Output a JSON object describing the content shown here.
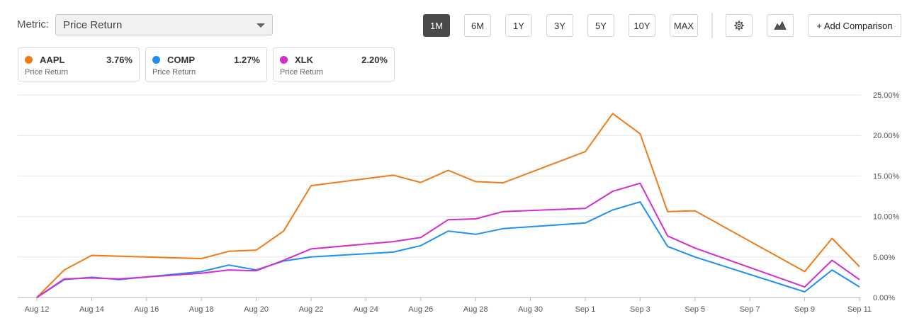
{
  "controls": {
    "metric_label": "Metric:",
    "metric_value": "Price Return",
    "periods": [
      "1M",
      "6M",
      "1Y",
      "3Y",
      "5Y",
      "10Y",
      "MAX"
    ],
    "active_period": "1M",
    "add_comparison": "+ Add Comparison"
  },
  "legend": [
    {
      "ticker": "AAPL",
      "value": "3.76%",
      "sub": "Price Return",
      "color": "#f07b16"
    },
    {
      "ticker": "COMP",
      "value": "1.27%",
      "sub": "Price Return",
      "color": "#1e90f0"
    },
    {
      "ticker": "XLK",
      "value": "2.20%",
      "sub": "Price Return",
      "color": "#d42ccf"
    }
  ],
  "chart_data": {
    "type": "line",
    "x_dates": [
      "Aug 12",
      "Aug 13",
      "Aug 14",
      "Aug 15",
      "Aug 16",
      "Aug 19",
      "Aug 20",
      "Aug 21",
      "Aug 22",
      "Aug 23",
      "Aug 26",
      "Aug 27",
      "Aug 28",
      "Aug 29",
      "Aug 30",
      "Sep 3",
      "Sep 4",
      "Sep 5",
      "Sep 6",
      "Sep 9",
      "Sep 10",
      "Sep 11"
    ],
    "x_tick_labels": [
      "Aug 12",
      "Aug 14",
      "Aug 16",
      "Aug 18",
      "Aug 20",
      "Aug 22",
      "Aug 24",
      "Aug 26",
      "Aug 28",
      "Aug 30",
      "Sep 1",
      "Sep 3",
      "Sep 5",
      "Sep 7",
      "Sep 9",
      "Sep 11"
    ],
    "y_tick_labels": [
      "0.00%",
      "5.00%",
      "10.00%",
      "15.00%",
      "20.00%",
      "25.00%"
    ],
    "ylim": [
      0,
      25
    ],
    "grid": true,
    "series": [
      {
        "name": "AAPL",
        "color": "#f07b16",
        "x": [
          "Aug 12",
          "Aug 13",
          "Aug 14",
          "Aug 18",
          "Aug 19",
          "Aug 20",
          "Aug 21",
          "Aug 22",
          "Aug 25",
          "Aug 26",
          "Aug 27",
          "Aug 28",
          "Aug 29",
          "Sep 1",
          "Sep 2",
          "Sep 3",
          "Sep 4",
          "Sep 5",
          "Sep 9",
          "Sep 10",
          "Sep 11"
        ],
        "values": [
          0.0,
          3.4,
          5.2,
          4.8,
          5.7,
          5.85,
          8.2,
          13.8,
          15.1,
          14.2,
          15.7,
          14.3,
          14.15,
          18.0,
          22.7,
          20.2,
          10.6,
          10.7,
          3.2,
          7.3,
          3.8
        ]
      },
      {
        "name": "COMP",
        "color": "#1e90f0",
        "x": [
          "Aug 12",
          "Aug 13",
          "Aug 14",
          "Aug 15",
          "Aug 18",
          "Aug 19",
          "Aug 20",
          "Aug 21",
          "Aug 22",
          "Aug 25",
          "Aug 26",
          "Aug 27",
          "Aug 28",
          "Aug 29",
          "Sep 1",
          "Sep 2",
          "Sep 3",
          "Sep 4",
          "Sep 5",
          "Sep 9",
          "Sep 10",
          "Sep 11"
        ],
        "values": [
          0.0,
          2.2,
          2.5,
          2.2,
          3.2,
          4.0,
          3.4,
          4.5,
          5.0,
          5.6,
          6.4,
          8.2,
          7.8,
          8.5,
          9.2,
          10.8,
          11.8,
          6.3,
          5.0,
          0.7,
          3.4,
          1.3
        ]
      },
      {
        "name": "XLK",
        "color": "#d42ccf",
        "x": [
          "Aug 12",
          "Aug 13",
          "Aug 14",
          "Aug 15",
          "Aug 18",
          "Aug 19",
          "Aug 20",
          "Aug 21",
          "Aug 22",
          "Aug 25",
          "Aug 26",
          "Aug 27",
          "Aug 28",
          "Aug 29",
          "Sep 1",
          "Sep 2",
          "Sep 3",
          "Sep 4",
          "Sep 5",
          "Sep 9",
          "Sep 10",
          "Sep 11"
        ],
        "values": [
          0.0,
          2.3,
          2.4,
          2.3,
          3.0,
          3.4,
          3.3,
          4.6,
          6.0,
          6.9,
          7.4,
          9.6,
          9.7,
          10.6,
          11.0,
          13.1,
          14.1,
          7.6,
          6.1,
          1.3,
          4.6,
          2.2
        ]
      }
    ]
  }
}
